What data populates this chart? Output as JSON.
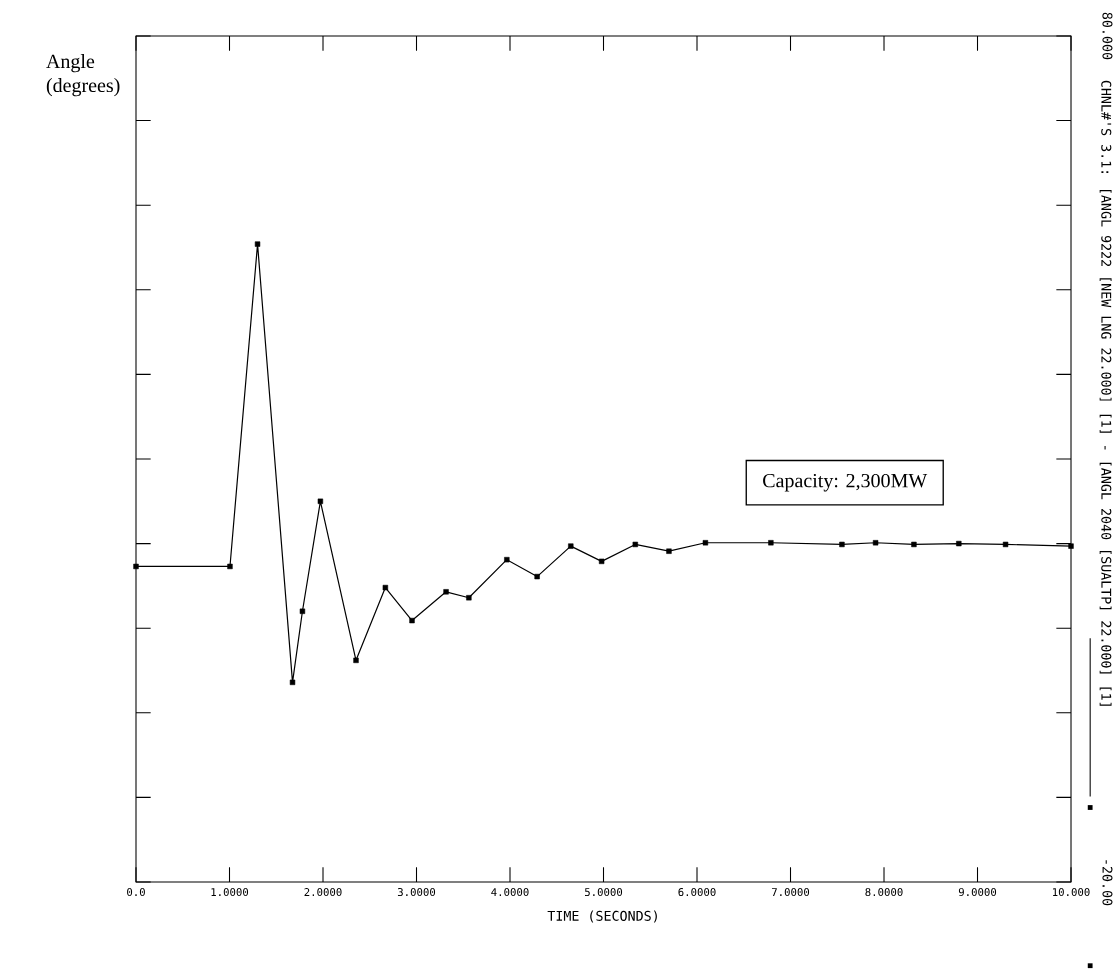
{
  "chart_data": {
    "type": "line",
    "xlabel": "TIME (SECONDS)",
    "ylabel": "Angle (degrees)",
    "annotations": [
      "Capacity: 2,300MW"
    ],
    "x": [
      0,
      1.005,
      1.3,
      1.674,
      1.78,
      1.972,
      2.353,
      2.667,
      2.952,
      3.316,
      3.56,
      3.966,
      4.29,
      4.65,
      4.98,
      5.34,
      5.7,
      6.09,
      6.79,
      7.55,
      7.91,
      8.32,
      8.8,
      9.3,
      10.0
    ],
    "series": [
      {
        "name": "CHNL#'S 3.1: [ANGL 9222 [NEW LNG 22.000] [1] - [ANGL 2040 [SUALTP] 22.000] [1]",
        "color": "#000000",
        "values": [
          17.3,
          17.3,
          55.4,
          3.6,
          12.0,
          25.0,
          6.2,
          14.8,
          10.9,
          14.3,
          13.6,
          18.1,
          16.1,
          19.7,
          17.9,
          19.9,
          19.1,
          20.1,
          20.1,
          19.9,
          20.1,
          19.9,
          20.0,
          19.9,
          19.7
        ]
      }
    ],
    "xlim": [
      0,
      10
    ],
    "ylim": [
      -20,
      80
    ],
    "xticks": [
      {
        "value": 0,
        "label": "0.0"
      },
      {
        "value": 1,
        "label": "1.0000"
      },
      {
        "value": 2,
        "label": "2.0000"
      },
      {
        "value": 3,
        "label": "3.0000"
      },
      {
        "value": 4,
        "label": "4.0000"
      },
      {
        "value": 5,
        "label": "5.0000"
      },
      {
        "value": 6,
        "label": "6.0000"
      },
      {
        "value": 7,
        "label": "7.0000"
      },
      {
        "value": 8,
        "label": "8.0000"
      },
      {
        "value": 9,
        "label": "9.0000"
      },
      {
        "value": 10,
        "label": "10.000"
      }
    ],
    "yticks": [
      {
        "value": -20,
        "label": "-20.00"
      },
      {
        "value": -10,
        "label": null
      },
      {
        "value": 0,
        "label": null
      },
      {
        "value": 10,
        "label": null
      },
      {
        "value": 20,
        "label": null
      },
      {
        "value": 30,
        "label": null
      },
      {
        "value": 40,
        "label": null
      },
      {
        "value": 50,
        "label": null
      },
      {
        "value": 60,
        "label": null
      },
      {
        "value": 70,
        "label": null
      },
      {
        "value": 80,
        "label": "80.000"
      }
    ],
    "grid": false,
    "legend": "right",
    "marker": "square",
    "line_style": "solid"
  }
}
